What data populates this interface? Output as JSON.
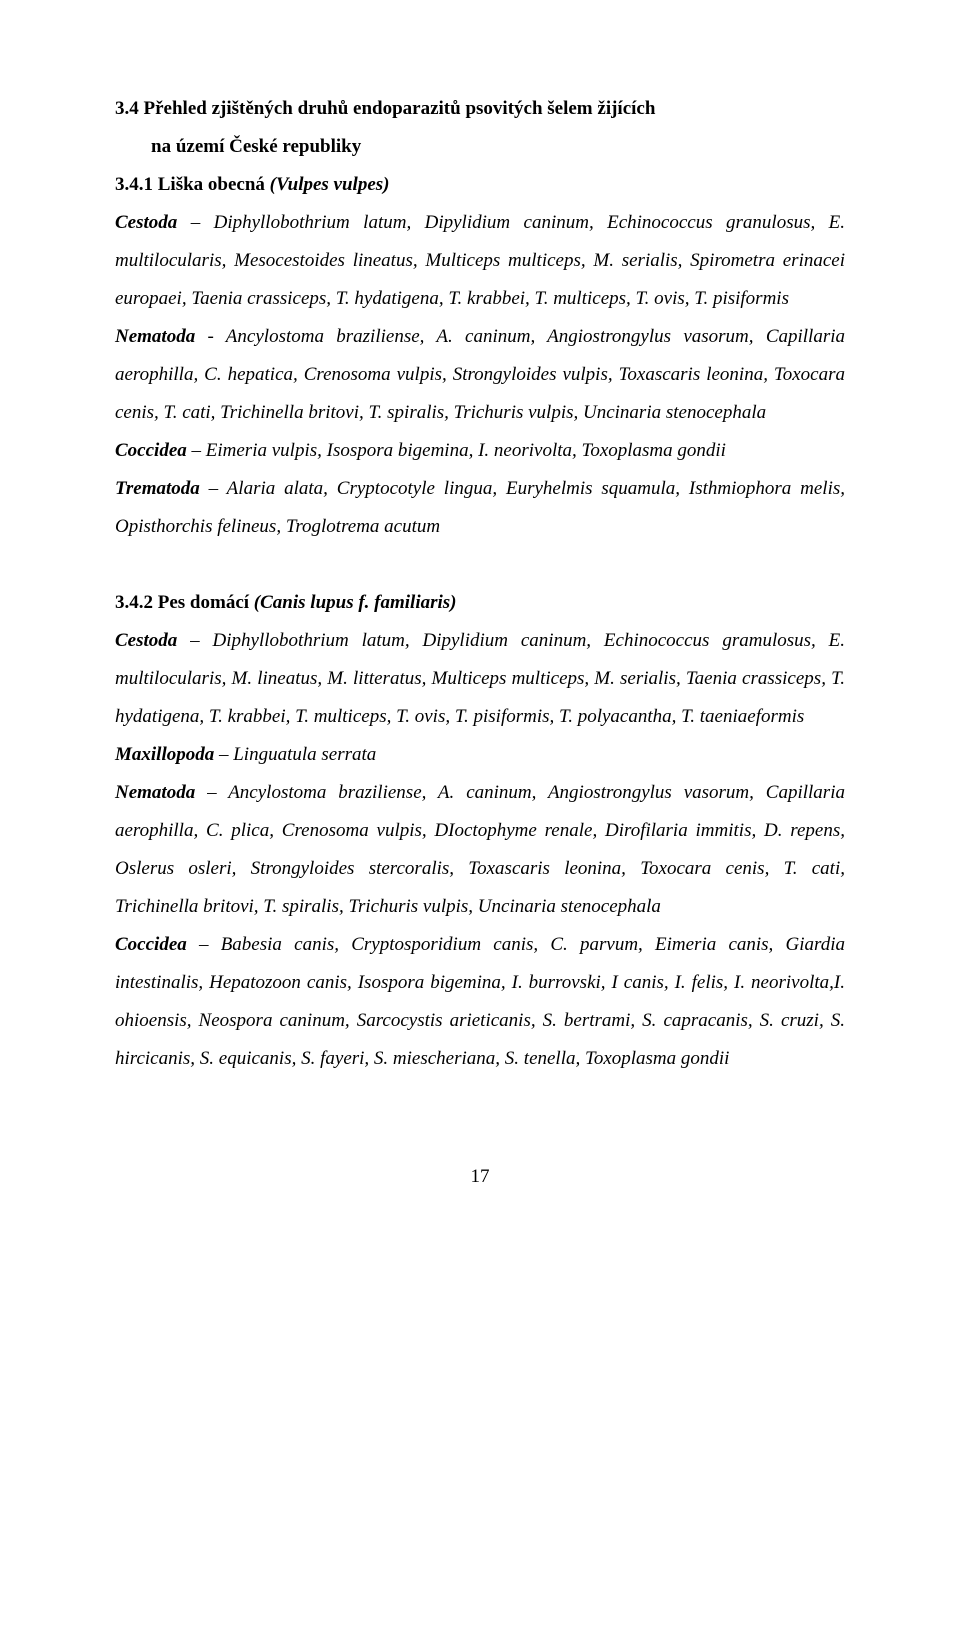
{
  "h3": {
    "line1": "3.4 Přehled zjištěných druhů endoparazitů psovitých šelem žijících",
    "line2": "na území České republiky"
  },
  "s1": {
    "heading_prefix": "3.4.1 Liška obecná ",
    "heading_suffix": "(Vulpes vulpes)",
    "p1_a": "Cestoda",
    "p1_b": " – Diphyllobothrium  latum, Dipylidium caninum, Echinococcus granulosus, E. multilocularis, Mesocestoides lineatus, Multiceps multiceps, M. serialis, Spirometra erinacei europaei, Taenia crassiceps, T. hydatigena, T. krabbei, T. multiceps, T. ovis, T. pisiformis",
    "p2_a": "Nematoda",
    "p2_b": " - Ancylostoma braziliense, A. caninum, Angiostrongylus vasorum, Capillaria aerophilla, C. hepatica, Crenosoma vulpis, Strongyloides vulpis, Toxascaris leonina, Toxocara cenis, T. cati, Trichinella britovi, T. spiralis, Trichuris vulpis, Uncinaria stenocephala",
    "p3_a": "Coccidea",
    "p3_b": " – Eimeria vulpis, Isospora bigemina, I. neorivolta, Toxoplasma gondii",
    "p4_a": "Trematoda",
    "p4_b": " – Alaria alata, Cryptocotyle lingua, Euryhelmis squamula, Isthmiophora melis, Opisthorchis felineus, Troglotrema acutum"
  },
  "s2": {
    "heading_prefix": "3.4.2 Pes domácí ",
    "heading_suffix": "(Canis lupus f. familiaris)",
    "p1_a": "Cestoda",
    "p1_b": " – Diphyllobothrium latum, Dipylidium caninum, Echinococcus gramulosus, E. multilocularis, M. lineatus, M. litteratus, Multiceps multiceps, M. serialis, Taenia crassiceps, T. hydatigena, T. krabbei, T. multiceps, T. ovis, T. pisiformis, T. polyacantha, T. taeniaeformis",
    "p2_a": "Maxillopoda",
    "p2_b": " – Linguatula serrata",
    "p3_a": "Nematoda",
    "p3_b": " – Ancylostoma braziliense, A. caninum, Angiostrongylus vasorum, Capillaria aerophilla, C. plica, Crenosoma vulpis, DIoctophyme renale, Dirofilaria immitis, D. repens, Oslerus osleri, Strongyloides stercoralis, Toxascaris leonina, Toxocara cenis, T. cati, Trichinella britovi, T. spiralis, Trichuris vulpis, Uncinaria stenocephala",
    "p4_a": "Coccidea",
    "p4_b": " – Babesia canis, Cryptosporidium canis, C. parvum, Eimeria canis, Giardia intestinalis, Hepatozoon canis, Isospora bigemina, I. burrovski, I canis, I. felis, I. neorivolta,I. ohioensis, Neospora caninum, Sarcocystis arieticanis, S. bertrami, S. capracanis, S. cruzi, S. hircicanis, S. equicanis, S. fayeri, S. miescheriana, S. tenella, Toxoplasma gondii"
  },
  "pagenum": "17"
}
